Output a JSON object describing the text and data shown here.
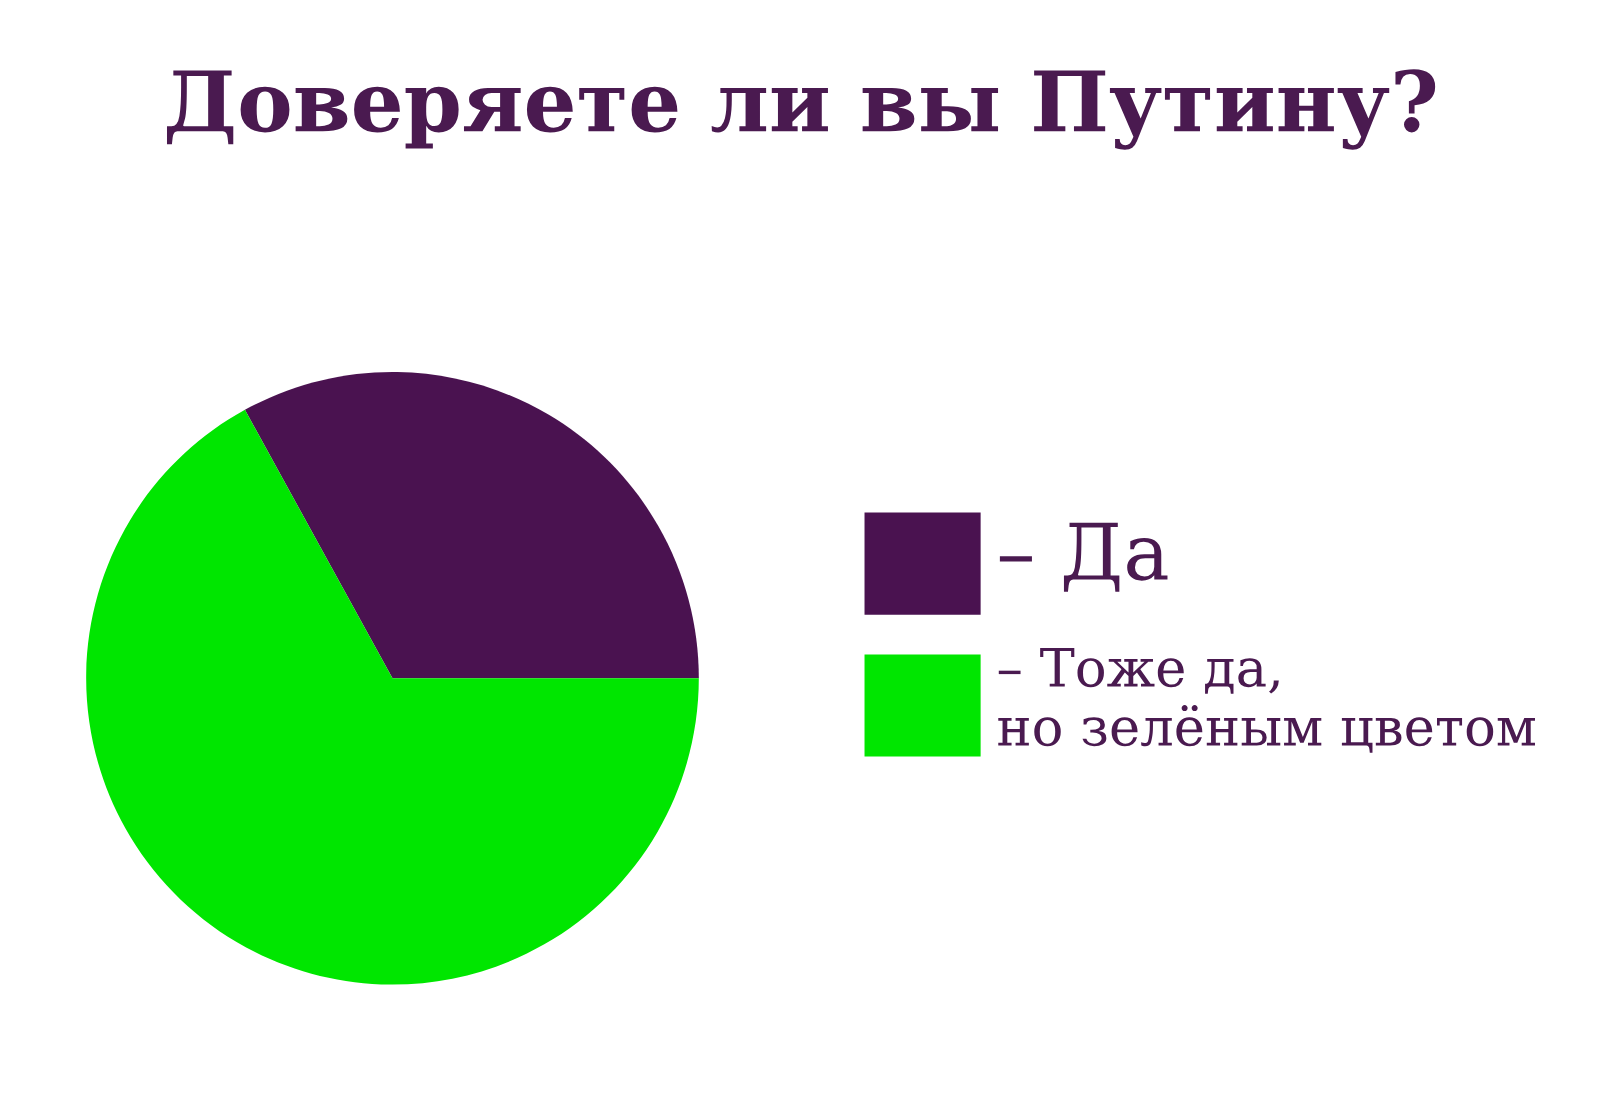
{
  "chart_data": {
    "type": "pie",
    "title": "Доверяете ли вы Путину?",
    "categories": [
      "– Да",
      "– Тоже да,\nно зелёным цветом"
    ],
    "values": [
      33,
      67
    ],
    "colors": [
      "#4a1250",
      "#00e600"
    ],
    "legend": "right"
  }
}
